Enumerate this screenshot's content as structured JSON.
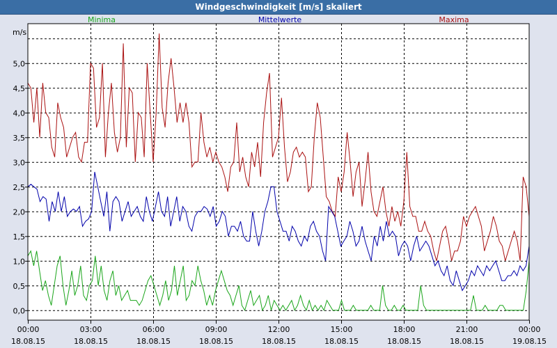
{
  "window": {
    "title": "Windgeschwindigkeit [m/s] skaliert"
  },
  "colors": {
    "minima": "#1aa51a",
    "mittel": "#0000aa",
    "maxima": "#aa1111",
    "grid": "#000000",
    "background": "#ffffff"
  },
  "chart_data": {
    "type": "line",
    "title": "Windgeschwindigkeit [m/s] skaliert",
    "ylabel": "m/s",
    "ylim": [
      -0.2,
      5.8
    ],
    "yticks": [
      0.0,
      0.5,
      1.0,
      1.5,
      2.0,
      2.5,
      3.0,
      3.5,
      4.0,
      4.5,
      5.0
    ],
    "ytick_labels": [
      "0,0",
      "0,5",
      "1,0",
      "1,5",
      "2,0",
      "2,5",
      "3,0",
      "3,5",
      "4,0",
      "4,5",
      "5,0"
    ],
    "xlim": [
      0,
      24
    ],
    "xticks": [
      0,
      3,
      6,
      9,
      12,
      15,
      18,
      21,
      24
    ],
    "xtick_labels": [
      [
        "00:00",
        "18.08.15"
      ],
      [
        "03:00",
        "18.08.15"
      ],
      [
        "06:00",
        "18.08.15"
      ],
      [
        "09:00",
        "18.08.15"
      ],
      [
        "12:00",
        "18.08.15"
      ],
      [
        "15:00",
        "18.08.15"
      ],
      [
        "18:00",
        "18.08.15"
      ],
      [
        "21:00",
        "18.08.15"
      ],
      [
        "00:00",
        "19.08.15"
      ]
    ],
    "grid": true,
    "legend_position": "top",
    "series": [
      {
        "name": "Maxima",
        "color": "#aa1111",
        "values": [
          4.6,
          4.5,
          3.8,
          4.5,
          3.5,
          4.6,
          4.0,
          3.9,
          3.3,
          3.1,
          4.2,
          3.9,
          3.7,
          3.1,
          3.3,
          3.5,
          3.6,
          3.1,
          3.0,
          3.4,
          3.4,
          5.0,
          4.9,
          3.7,
          3.9,
          5.0,
          3.1,
          4.0,
          4.6,
          3.6,
          3.2,
          3.5,
          5.4,
          3.3,
          4.5,
          4.4,
          3.0,
          4.0,
          3.9,
          3.1,
          5.0,
          4.0,
          3.0,
          4.0,
          5.6,
          4.1,
          3.7,
          4.6,
          5.1,
          4.5,
          3.8,
          4.2,
          3.8,
          4.2,
          3.8,
          2.9,
          3.0,
          3.0,
          4.0,
          3.4,
          3.1,
          3.3,
          3.0,
          3.2,
          3.0,
          2.9,
          2.7,
          2.4,
          2.9,
          3.0,
          3.8,
          2.8,
          3.1,
          2.7,
          2.5,
          3.2,
          2.9,
          3.4,
          2.7,
          3.8,
          4.4,
          4.8,
          3.1,
          3.3,
          3.5,
          4.3,
          3.3,
          2.6,
          2.8,
          3.2,
          3.3,
          3.1,
          3.2,
          3.1,
          2.4,
          2.5,
          3.5,
          4.2,
          3.9,
          3.1,
          2.3,
          2.2,
          2.0,
          1.9,
          2.7,
          2.4,
          2.8,
          3.6,
          3.0,
          2.3,
          2.8,
          3.0,
          2.1,
          2.6,
          3.2,
          2.4,
          2.0,
          1.9,
          2.2,
          2.5,
          2.0,
          1.7,
          2.1,
          1.8,
          2.0,
          1.7,
          2.2,
          3.2,
          2.1,
          1.9,
          1.9,
          1.6,
          1.6,
          1.8,
          1.6,
          1.5,
          1.2,
          1.0,
          1.3,
          1.6,
          1.7,
          1.4,
          1.0,
          1.2,
          1.2,
          1.4,
          1.9,
          1.7,
          1.9,
          2.0,
          2.1,
          1.9,
          1.7,
          1.2,
          1.4,
          1.6,
          1.9,
          1.7,
          1.4,
          1.3,
          1.0,
          1.2,
          1.4,
          1.6,
          1.4,
          1.0,
          2.7,
          2.5,
          1.9
        ]
      },
      {
        "name": "Mittelwerte",
        "color": "#0000aa",
        "values": [
          2.5,
          2.55,
          2.5,
          2.45,
          2.2,
          2.3,
          2.25,
          1.8,
          2.2,
          2.0,
          2.4,
          2.0,
          2.3,
          1.9,
          2.0,
          2.05,
          2.0,
          2.1,
          1.7,
          1.8,
          1.85,
          2.0,
          2.8,
          2.5,
          2.2,
          1.9,
          2.4,
          1.6,
          2.2,
          2.3,
          2.2,
          1.8,
          2.0,
          2.2,
          1.9,
          2.0,
          2.1,
          1.9,
          1.8,
          2.3,
          2.0,
          1.8,
          2.1,
          2.4,
          2.0,
          1.9,
          2.3,
          1.7,
          2.0,
          2.3,
          1.8,
          2.1,
          2.0,
          1.7,
          1.6,
          1.9,
          2.0,
          2.0,
          2.1,
          2.05,
          1.9,
          2.1,
          1.7,
          1.8,
          2.0,
          1.9,
          1.5,
          1.7,
          1.7,
          1.6,
          1.8,
          1.5,
          1.4,
          1.4,
          2.0,
          1.6,
          1.3,
          1.6,
          2.0,
          2.2,
          2.5,
          2.5,
          2.0,
          1.8,
          1.6,
          1.6,
          1.4,
          1.7,
          1.6,
          1.4,
          1.3,
          1.5,
          1.4,
          1.7,
          1.8,
          1.6,
          1.5,
          1.2,
          1.0,
          2.1,
          2.0,
          1.9,
          1.6,
          1.3,
          1.4,
          1.5,
          1.8,
          1.6,
          1.3,
          1.4,
          1.7,
          1.4,
          1.2,
          1.0,
          1.5,
          1.3,
          1.7,
          1.4,
          1.8,
          1.5,
          1.6,
          1.5,
          1.1,
          1.3,
          1.4,
          1.3,
          1.0,
          1.3,
          1.5,
          1.2,
          1.3,
          1.4,
          1.3,
          1.1,
          0.9,
          1.0,
          0.8,
          0.7,
          0.9,
          0.6,
          0.5,
          0.8,
          0.6,
          0.4,
          0.5,
          0.6,
          0.8,
          0.7,
          0.9,
          0.8,
          0.7,
          0.9,
          0.8,
          0.9,
          1.0,
          0.8,
          0.6,
          0.6,
          0.7,
          0.7,
          0.8,
          0.7,
          0.9,
          0.8,
          0.9,
          1.3
        ]
      },
      {
        "name": "Minima",
        "color": "#1aa51a",
        "values": [
          1.1,
          1.2,
          0.9,
          1.2,
          0.8,
          0.4,
          0.6,
          0.3,
          0.1,
          0.5,
          0.9,
          1.1,
          0.5,
          0.1,
          0.4,
          0.8,
          0.3,
          0.5,
          0.9,
          0.3,
          0.2,
          0.5,
          0.6,
          1.1,
          0.5,
          0.9,
          0.4,
          0.2,
          0.6,
          0.8,
          0.3,
          0.5,
          0.2,
          0.3,
          0.4,
          0.2,
          0.2,
          0.2,
          0.1,
          0.2,
          0.4,
          0.6,
          0.7,
          0.5,
          0.3,
          0.1,
          0.3,
          0.6,
          0.2,
          0.4,
          0.9,
          0.3,
          0.6,
          0.9,
          0.2,
          0.3,
          0.6,
          0.5,
          0.9,
          0.6,
          0.4,
          0.1,
          0.3,
          0.1,
          0.4,
          0.6,
          0.8,
          0.6,
          0.4,
          0.3,
          0.1,
          0.3,
          0.5,
          0.1,
          0.0,
          0.2,
          0.4,
          0.1,
          0.2,
          0.3,
          0.0,
          0.1,
          0.3,
          0.0,
          0.2,
          0.1,
          0.0,
          0.1,
          0.0,
          0.1,
          0.2,
          0.0,
          0.1,
          0.3,
          0.1,
          0.0,
          0.2,
          0.0,
          0.1,
          0.0,
          0.1,
          0.0,
          0.2,
          0.1,
          0.0,
          0.0,
          0.0,
          0.2,
          0.0,
          0.0,
          0.0,
          0.1,
          0.0,
          0.0,
          0.0,
          0.0,
          0.0,
          0.1,
          0.0,
          0.0,
          0.0,
          0.5,
          0.1,
          0.0,
          0.0,
          0.1,
          0.0,
          0.0,
          0.1,
          0.0,
          0.0,
          0.0,
          0.0,
          0.0,
          0.5,
          0.1,
          0.0,
          0.0,
          0.0,
          0.0,
          0.0,
          0.0,
          0.0,
          0.0,
          0.0,
          0.0,
          0.0,
          0.0,
          0.0,
          0.0,
          0.0,
          0.0,
          0.3,
          0.0,
          0.0,
          0.0,
          0.1,
          0.0,
          0.0,
          0.0,
          0.0,
          0.1,
          0.1,
          0.0,
          0.0,
          0.0,
          0.0,
          0.0,
          0.0,
          0.0,
          0.4,
          1.0
        ]
      }
    ]
  }
}
